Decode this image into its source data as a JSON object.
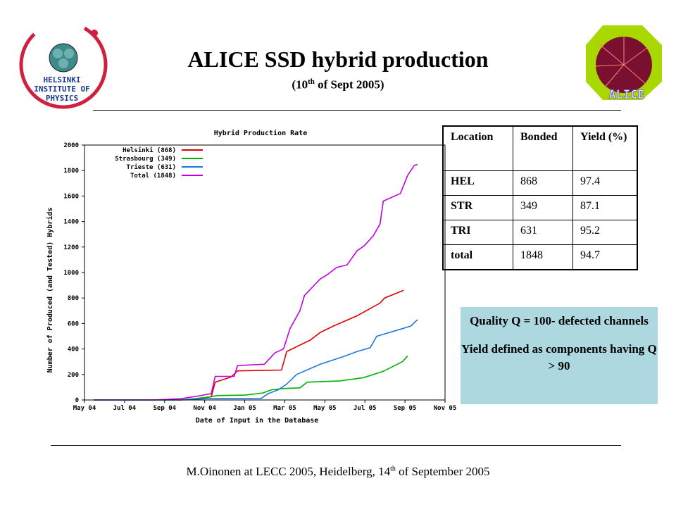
{
  "slide": {
    "title": "ALICE SSD hybrid production",
    "subtitle_pre": "(10",
    "subtitle_sup": "th",
    "subtitle_post": " of Sept 2005)",
    "footer_pre": "M.Oinonen at LECC 2005, Heidelberg, 14",
    "footer_sup": "th",
    "footer_post": " of September 2005"
  },
  "logos": {
    "left": {
      "icon": "helsinki-institute-of-physics-logo",
      "line1": "HELSINKI",
      "line2": "INSTITUTE OF",
      "line3": "PHYSICS"
    },
    "right": {
      "icon": "alice-experiment-logo",
      "text": "ALICE"
    }
  },
  "table": {
    "headers": [
      "Location",
      "Bonded",
      "Yield (%)"
    ],
    "rows": [
      [
        "HEL",
        "868",
        "97.4"
      ],
      [
        "STR",
        "349",
        "87.1"
      ],
      [
        "TRI",
        "631",
        "95.2"
      ],
      [
        "total",
        "1848",
        "94.7"
      ]
    ]
  },
  "quality_box": {
    "line1": "Quality Q = 100- defected channels",
    "line2": "Yield defined as components having Q > 90",
    "background": "#add8e0"
  },
  "chart_data": {
    "type": "line",
    "title": "Hybrid Production Rate",
    "xlabel": "Date of Input in the Database",
    "ylabel": "Number of Produced (and Tested) Hybrids",
    "x_tick_labels": [
      "May 04",
      "Jul 04",
      "Sep 04",
      "Nov 04",
      "Jan 05",
      "Mar 05",
      "May 05",
      "Jul 05",
      "Sep 05",
      "Nov 05"
    ],
    "x_range": [
      "2004-05-01",
      "2005-11-01"
    ],
    "ylim": [
      0,
      2000
    ],
    "y_ticks": [
      0,
      200,
      400,
      600,
      800,
      1000,
      1200,
      1400,
      1600,
      1800,
      2000
    ],
    "grid": false,
    "legend_position": "top-left",
    "series": [
      {
        "name": "Helsinki (868)",
        "color": "#e00000",
        "points": [
          [
            "2004-10-01",
            0
          ],
          [
            "2004-10-20",
            10
          ],
          [
            "2004-11-10",
            25
          ],
          [
            "2004-11-16",
            140
          ],
          [
            "2004-12-10",
            180
          ],
          [
            "2004-12-20",
            228
          ],
          [
            "2005-02-25",
            235
          ],
          [
            "2005-03-05",
            380
          ],
          [
            "2005-04-10",
            470
          ],
          [
            "2005-04-25",
            530
          ],
          [
            "2005-05-15",
            580
          ],
          [
            "2005-06-20",
            660
          ],
          [
            "2005-07-25",
            760
          ],
          [
            "2005-08-01",
            800
          ],
          [
            "2005-08-30",
            860
          ]
        ]
      },
      {
        "name": "Strasbourg (349)",
        "color": "#00b000",
        "points": [
          [
            "2004-05-15",
            0
          ],
          [
            "2004-09-25",
            0
          ],
          [
            "2004-10-15",
            10
          ],
          [
            "2004-11-01",
            20
          ],
          [
            "2004-11-20",
            35
          ],
          [
            "2005-01-01",
            38
          ],
          [
            "2005-01-28",
            55
          ],
          [
            "2005-02-10",
            80
          ],
          [
            "2005-03-01",
            90
          ],
          [
            "2005-03-25",
            95
          ],
          [
            "2005-04-05",
            140
          ],
          [
            "2005-05-25",
            150
          ],
          [
            "2005-06-30",
            175
          ],
          [
            "2005-07-30",
            225
          ],
          [
            "2005-08-28",
            300
          ],
          [
            "2005-09-05",
            345
          ]
        ]
      },
      {
        "name": "Trieste (631)",
        "color": "#1e78e0",
        "points": [
          [
            "2004-05-15",
            0
          ],
          [
            "2004-09-25",
            0
          ],
          [
            "2004-10-15",
            5
          ],
          [
            "2004-11-01",
            10
          ],
          [
            "2005-01-25",
            12
          ],
          [
            "2005-02-05",
            50
          ],
          [
            "2005-02-20",
            80
          ],
          [
            "2005-03-05",
            125
          ],
          [
            "2005-03-20",
            200
          ],
          [
            "2005-04-25",
            280
          ],
          [
            "2005-05-30",
            340
          ],
          [
            "2005-06-20",
            380
          ],
          [
            "2005-07-10",
            410
          ],
          [
            "2005-07-20",
            500
          ],
          [
            "2005-08-15",
            540
          ],
          [
            "2005-09-10",
            580
          ],
          [
            "2005-09-20",
            630
          ]
        ]
      },
      {
        "name": "Total (1848)",
        "color": "#c000e0",
        "points": [
          [
            "2004-05-15",
            0
          ],
          [
            "2004-08-15",
            0
          ],
          [
            "2004-09-25",
            10
          ],
          [
            "2004-10-20",
            30
          ],
          [
            "2004-11-10",
            50
          ],
          [
            "2004-11-16",
            185
          ],
          [
            "2004-12-15",
            185
          ],
          [
            "2004-12-20",
            270
          ],
          [
            "2005-01-30",
            280
          ],
          [
            "2005-02-15",
            370
          ],
          [
            "2005-02-28",
            400
          ],
          [
            "2005-03-10",
            560
          ],
          [
            "2005-03-25",
            700
          ],
          [
            "2005-04-01",
            820
          ],
          [
            "2005-04-25",
            950
          ],
          [
            "2005-05-05",
            980
          ],
          [
            "2005-05-20",
            1040
          ],
          [
            "2005-06-05",
            1060
          ],
          [
            "2005-06-20",
            1170
          ],
          [
            "2005-07-01",
            1210
          ],
          [
            "2005-07-15",
            1290
          ],
          [
            "2005-07-25",
            1380
          ],
          [
            "2005-07-30",
            1560
          ],
          [
            "2005-08-25",
            1620
          ],
          [
            "2005-09-05",
            1760
          ],
          [
            "2005-09-15",
            1840
          ],
          [
            "2005-09-20",
            1848
          ]
        ]
      }
    ]
  }
}
